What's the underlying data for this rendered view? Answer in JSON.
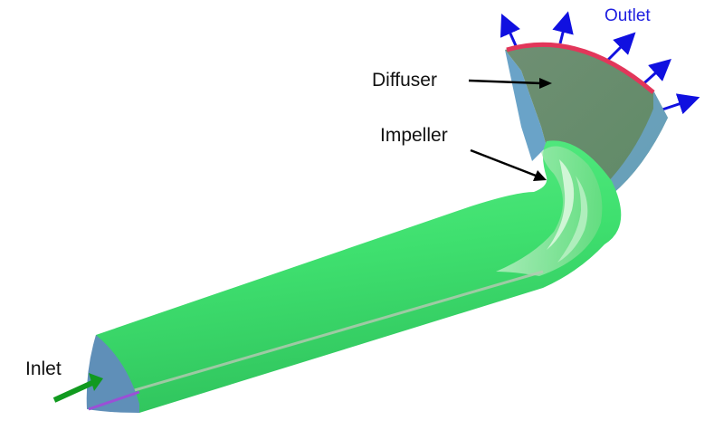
{
  "labels": {
    "diffuser": "Diffuser",
    "impeller": "Impeller",
    "inlet": "Inlet",
    "outlet": "Outlet"
  },
  "colors": {
    "body": "#3fe06f",
    "body_dark": "#2fc65c",
    "inlet_face": "#5f8fb8",
    "inlet_edge": "#9b4fd6",
    "diffuser_face": "#6a8f72",
    "diffuser_side": "#6aa3c8",
    "outlet_rim": "#e2365a",
    "outlet_arrows": "#1010e0",
    "inlet_arrow": "#119a1f",
    "label_text": "#111111",
    "outlet_text": "#2020e0"
  }
}
